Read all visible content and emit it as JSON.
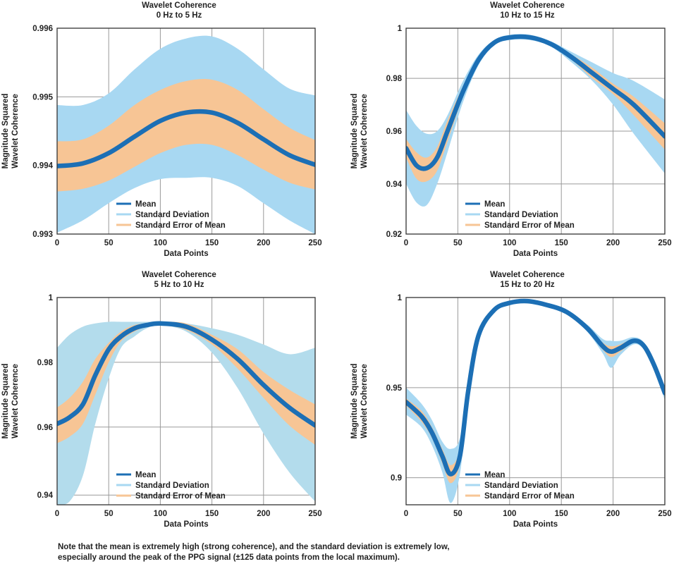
{
  "colors": {
    "mean": "#1c6fb5",
    "std_dev": "#a8d8f2",
    "std_err": "#f7c595",
    "std_dev_alt": "#b3dcec",
    "grid": "#9a9a9a"
  },
  "note": {
    "line1": "Note that the mean is extremely high (strong coherence), and the standard deviation is extremely low,",
    "line2": "especially around the peak of the PPG signal (±125 data points from the local maximum)."
  },
  "chart_data": [
    {
      "type": "area",
      "title": "Wavelet Coherence",
      "subtitle": "0 Hz to 5 Hz",
      "xlabel": "Data Points",
      "ylabel": [
        "Magnitude Squared",
        "Wavelet Coherence"
      ],
      "xlim": [
        0,
        250
      ],
      "ylim": [
        0.993,
        0.996
      ],
      "xticks": [
        "0",
        "50",
        "100",
        "150",
        "200",
        "250"
      ],
      "yticks": [
        "0.993",
        "0.994",
        "0.995",
        "0.996"
      ],
      "ytick_values": [
        0.993,
        0.994,
        0.995,
        0.996
      ],
      "grid": true,
      "legend_position": "bottom-left",
      "legend": [
        "Mean",
        "Standard Deviation",
        "Standard Error of Mean"
      ],
      "x": [
        0,
        25,
        50,
        75,
        100,
        125,
        150,
        175,
        200,
        225,
        250
      ],
      "mean": [
        0.99399,
        0.99403,
        0.99418,
        0.99442,
        0.99465,
        0.99477,
        0.99477,
        0.99462,
        0.99438,
        0.99415,
        0.99401
      ],
      "sem_upper": [
        0.99435,
        0.99438,
        0.99458,
        0.99488,
        0.9951,
        0.99523,
        0.99525,
        0.9951,
        0.99482,
        0.99455,
        0.99437
      ],
      "sem_lower": [
        0.99362,
        0.99366,
        0.99378,
        0.99398,
        0.99418,
        0.9943,
        0.9943,
        0.99415,
        0.99394,
        0.99375,
        0.99365
      ],
      "sd_upper": [
        0.99488,
        0.99488,
        0.99505,
        0.9954,
        0.9957,
        0.99585,
        0.99588,
        0.9957,
        0.9954,
        0.99512,
        0.99502
      ],
      "sd_lower": [
        0.99302,
        0.9932,
        0.99345,
        0.99367,
        0.9938,
        0.99382,
        0.99382,
        0.9937,
        0.99345,
        0.9932,
        0.993
      ]
    },
    {
      "type": "area",
      "title": "Wavelet Coherence",
      "subtitle": "10 Hz to 15 Hz",
      "xlabel": "Data Points",
      "ylabel": [
        "Magnitude Squared",
        "Wavelet Coherence"
      ],
      "xlim": [
        0,
        250
      ],
      "ylim": [
        0.922,
        1.0
      ],
      "xticks": [
        "0",
        "50",
        "100",
        "150",
        "200",
        "250"
      ],
      "yticks": [
        "0.92",
        "0.94",
        "0.96",
        "0.98",
        "1"
      ],
      "ytick_values": [
        0.922,
        0.941,
        0.961,
        0.981,
        1.0
      ],
      "grid": true,
      "legend_position": "bottom-left",
      "legend": [
        "Mean",
        "Standard Deviation",
        "Standard Error of Mean"
      ],
      "x": [
        0,
        10,
        20,
        30,
        40,
        55,
        70,
        85,
        100,
        120,
        140,
        160,
        180,
        200,
        220,
        250
      ],
      "mean": [
        0.9545,
        0.948,
        0.947,
        0.951,
        0.961,
        0.976,
        0.988,
        0.9945,
        0.9965,
        0.9965,
        0.994,
        0.989,
        0.983,
        0.977,
        0.971,
        0.959
      ],
      "sem_upper": [
        0.958,
        0.953,
        0.951,
        0.955,
        0.965,
        0.978,
        0.989,
        0.995,
        0.997,
        0.997,
        0.9945,
        0.99,
        0.985,
        0.979,
        0.974,
        0.964
      ],
      "sem_lower": [
        0.951,
        0.943,
        0.942,
        0.946,
        0.957,
        0.974,
        0.987,
        0.994,
        0.996,
        0.996,
        0.9935,
        0.988,
        0.981,
        0.975,
        0.967,
        0.954
      ],
      "sd_upper": [
        0.969,
        0.963,
        0.96,
        0.961,
        0.967,
        0.98,
        0.99,
        0.9955,
        0.9975,
        0.9975,
        0.995,
        0.991,
        0.987,
        0.983,
        0.98,
        0.973
      ],
      "sd_lower": [
        0.941,
        0.934,
        0.933,
        0.941,
        0.953,
        0.972,
        0.986,
        0.9935,
        0.9955,
        0.9955,
        0.993,
        0.987,
        0.98,
        0.971,
        0.96,
        0.945
      ]
    },
    {
      "type": "area",
      "title": "Wavelet Coherence",
      "subtitle": "5 Hz to 10 Hz",
      "xlabel": "Data Points",
      "ylabel": [
        "Magnitude Squared",
        "Wavelet Coherence"
      ],
      "xlim": [
        0,
        250
      ],
      "ylim": [
        0.936,
        1.0
      ],
      "xticks": [
        "0",
        "50",
        "100",
        "150",
        "200",
        "250"
      ],
      "yticks": [
        "0.94",
        "0.96",
        "0.98",
        "1"
      ],
      "ytick_values": [
        0.939,
        0.96,
        0.98,
        1.0
      ],
      "grid": true,
      "legend_position": "bottom-left",
      "legend": [
        "Mean",
        "Standard Deviation",
        "Standard Error of Mean"
      ],
      "x": [
        0,
        12,
        25,
        37,
        50,
        62,
        75,
        87,
        100,
        125,
        150,
        175,
        200,
        225,
        250
      ],
      "mean": [
        0.961,
        0.963,
        0.967,
        0.976,
        0.984,
        0.988,
        0.9905,
        0.9915,
        0.992,
        0.991,
        0.987,
        0.981,
        0.973,
        0.966,
        0.9605
      ],
      "sem_upper": [
        0.966,
        0.969,
        0.974,
        0.981,
        0.986,
        0.9895,
        0.9915,
        0.992,
        0.9925,
        0.992,
        0.9885,
        0.984,
        0.977,
        0.9715,
        0.967
      ],
      "sem_lower": [
        0.955,
        0.957,
        0.961,
        0.97,
        0.98,
        0.9865,
        0.9895,
        0.991,
        0.9915,
        0.99,
        0.9855,
        0.978,
        0.969,
        0.9605,
        0.9545
      ],
      "sd_upper": [
        0.9845,
        0.9885,
        0.991,
        0.992,
        0.9925,
        0.9925,
        0.9925,
        0.9925,
        0.9925,
        0.992,
        0.9905,
        0.9885,
        0.9855,
        0.9825,
        0.9845
      ],
      "sd_lower": [
        0.936,
        0.937,
        0.945,
        0.961,
        0.975,
        0.9845,
        0.988,
        0.9905,
        0.9915,
        0.9895,
        0.983,
        0.972,
        0.958,
        0.946,
        0.937
      ]
    },
    {
      "type": "area",
      "title": "Wavelet Coherence",
      "subtitle": "15 Hz to 20 Hz",
      "xlabel": "Data Points",
      "ylabel": [
        "Magnitude Squared",
        "Wavelet Coherence"
      ],
      "xlim": [
        0,
        250
      ],
      "ylim": [
        0.885,
        1.0
      ],
      "xticks": [
        "0",
        "50",
        "100",
        "150",
        "200",
        "250"
      ],
      "yticks": [
        "0.9",
        "0.95",
        "1"
      ],
      "ytick_values": [
        0.9,
        0.95,
        1.0
      ],
      "grid": true,
      "legend_position": "bottom-left",
      "legend": [
        "Mean",
        "Standard Deviation",
        "Standard Error of Mean"
      ],
      "x": [
        0,
        15,
        25,
        35,
        43,
        52,
        60,
        70,
        85,
        100,
        117,
        135,
        155,
        175,
        190,
        198,
        207,
        220,
        230,
        240,
        250
      ],
      "mean": [
        0.942,
        0.934,
        0.925,
        0.912,
        0.902,
        0.912,
        0.948,
        0.979,
        0.993,
        0.997,
        0.998,
        0.996,
        0.992,
        0.983,
        0.973,
        0.97,
        0.972,
        0.976,
        0.973,
        0.962,
        0.947
      ],
      "sem_upper": [
        0.944,
        0.937,
        0.928,
        0.916,
        0.907,
        0.916,
        0.95,
        0.98,
        0.9935,
        0.9975,
        0.9985,
        0.9965,
        0.9925,
        0.984,
        0.975,
        0.973,
        0.974,
        0.977,
        0.974,
        0.963,
        0.949
      ],
      "sem_lower": [
        0.94,
        0.931,
        0.922,
        0.908,
        0.897,
        0.908,
        0.946,
        0.978,
        0.9925,
        0.9965,
        0.9975,
        0.9955,
        0.9915,
        0.982,
        0.971,
        0.967,
        0.97,
        0.975,
        0.972,
        0.961,
        0.945
      ],
      "sd_upper": [
        0.95,
        0.941,
        0.932,
        0.92,
        0.916,
        0.922,
        0.953,
        0.981,
        0.994,
        0.998,
        0.999,
        0.997,
        0.993,
        0.985,
        0.977,
        0.976,
        0.976,
        0.978,
        0.975,
        0.964,
        0.951
      ],
      "sd_lower": [
        0.935,
        0.928,
        0.918,
        0.903,
        0.886,
        0.902,
        0.943,
        0.977,
        0.992,
        0.996,
        0.997,
        0.995,
        0.991,
        0.981,
        0.969,
        0.961,
        0.968,
        0.974,
        0.971,
        0.96,
        0.943
      ]
    }
  ]
}
